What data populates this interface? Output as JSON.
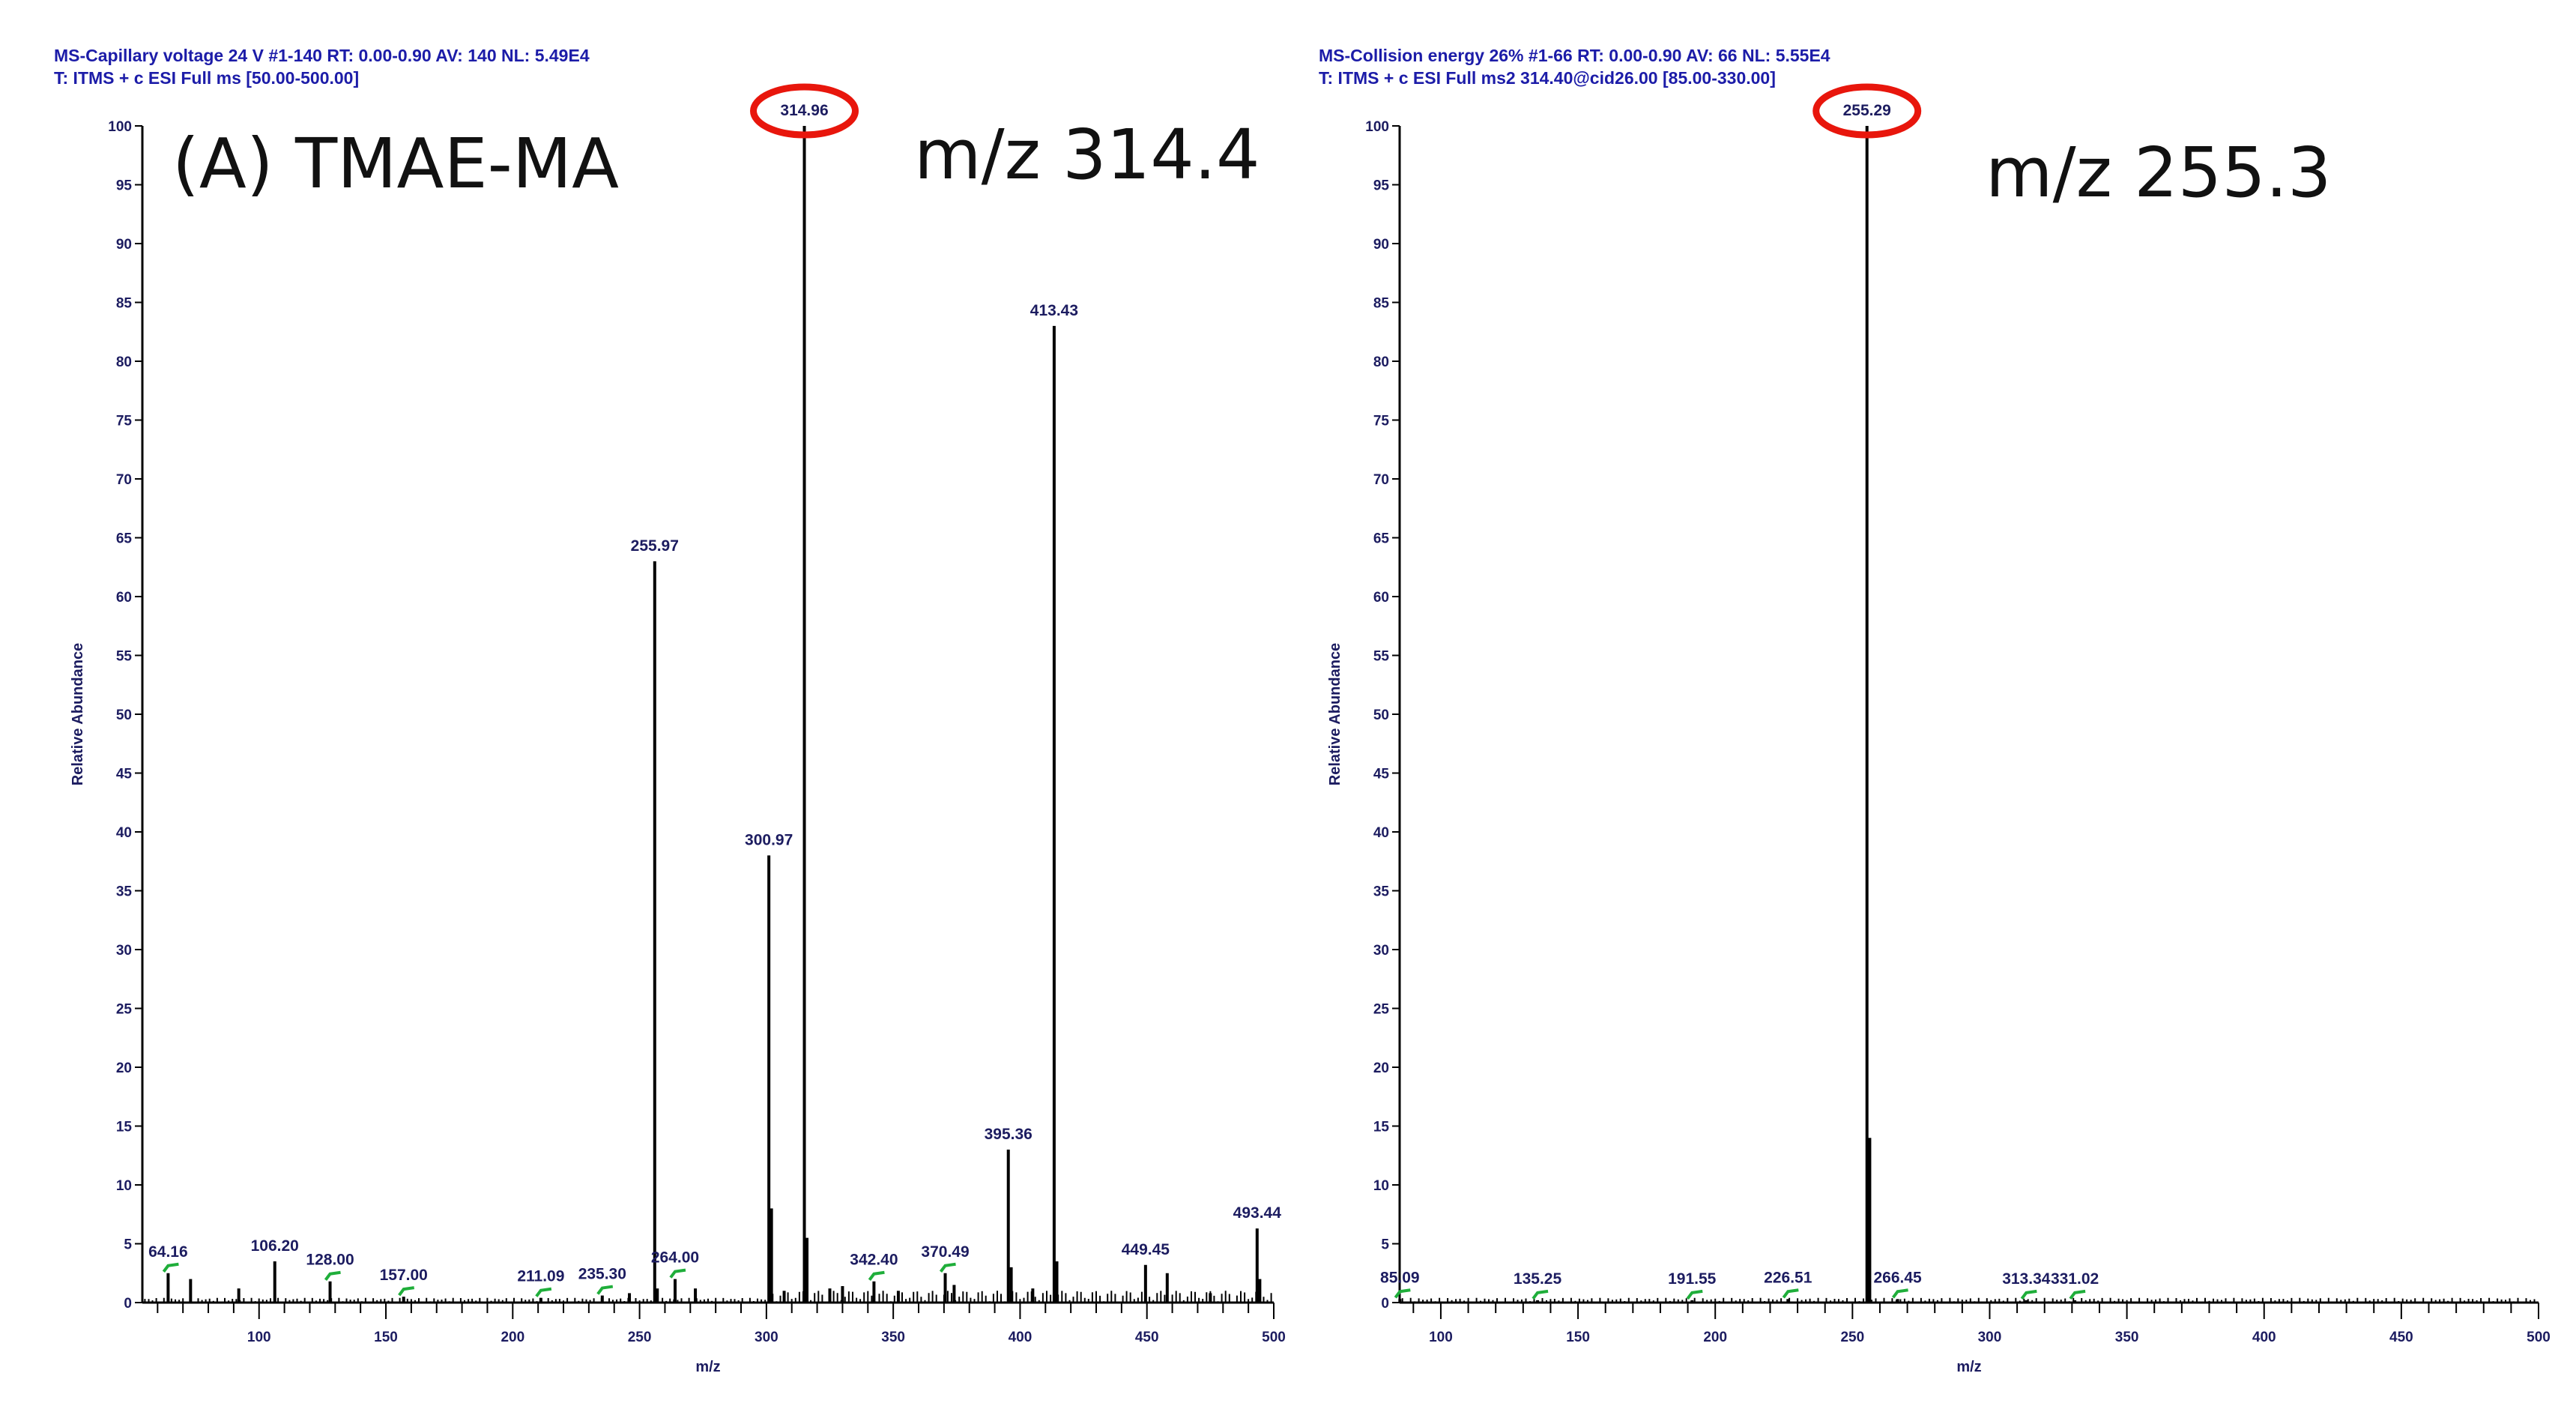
{
  "chart_data": [
    {
      "type": "bar",
      "header_line1": "MS-Capillary voltage 24 V #1-140  RT: 0.00-0.90  AV: 140  NL: 5.49E4",
      "header_line2": "T: ITMS + c ESI Full ms [50.00-500.00]",
      "annotation_title": "(A) TMAE-MA",
      "annotation_mz": "m/z 314.4",
      "highlighted_peak": "314.96",
      "xlabel": "m/z",
      "ylabel": "Relative Abundance",
      "xlim": [
        54,
        500
      ],
      "ylim": [
        0,
        100
      ],
      "xticks": [
        100,
        150,
        200,
        250,
        300,
        350,
        400,
        450,
        500
      ],
      "yticks": [
        0,
        5,
        10,
        15,
        20,
        25,
        30,
        35,
        40,
        45,
        50,
        55,
        60,
        65,
        70,
        75,
        80,
        85,
        90,
        95,
        100
      ],
      "peaks": [
        {
          "mz": 64.16,
          "intensity": 2.5,
          "label": "64.16"
        },
        {
          "mz": 73,
          "intensity": 2
        },
        {
          "mz": 92,
          "intensity": 1.2
        },
        {
          "mz": 106.2,
          "intensity": 3.5,
          "label": "106.20"
        },
        {
          "mz": 128.0,
          "intensity": 1.8,
          "label": "128.00"
        },
        {
          "mz": 157.0,
          "intensity": 0.5,
          "label": "157.00"
        },
        {
          "mz": 211.09,
          "intensity": 0.4,
          "label": "211.09"
        },
        {
          "mz": 235.3,
          "intensity": 0.6,
          "label": "235.30"
        },
        {
          "mz": 246,
          "intensity": 0.8
        },
        {
          "mz": 255.97,
          "intensity": 63,
          "label": "255.97"
        },
        {
          "mz": 257,
          "intensity": 1.2
        },
        {
          "mz": 264.0,
          "intensity": 2,
          "label": "264.00"
        },
        {
          "mz": 272,
          "intensity": 1.2
        },
        {
          "mz": 300.97,
          "intensity": 38,
          "label": "300.97"
        },
        {
          "mz": 302,
          "intensity": 8
        },
        {
          "mz": 307,
          "intensity": 1
        },
        {
          "mz": 314.96,
          "intensity": 100,
          "label": "314.96"
        },
        {
          "mz": 316,
          "intensity": 5.5
        },
        {
          "mz": 325,
          "intensity": 1.2
        },
        {
          "mz": 330,
          "intensity": 1.4
        },
        {
          "mz": 342.4,
          "intensity": 1.8,
          "label": "342.40"
        },
        {
          "mz": 352,
          "intensity": 1
        },
        {
          "mz": 370.49,
          "intensity": 2.5,
          "label": "370.49"
        },
        {
          "mz": 374,
          "intensity": 1.5
        },
        {
          "mz": 395.36,
          "intensity": 13,
          "label": "395.36"
        },
        {
          "mz": 396.5,
          "intensity": 3
        },
        {
          "mz": 405,
          "intensity": 1.2
        },
        {
          "mz": 413.43,
          "intensity": 83,
          "label": "413.43"
        },
        {
          "mz": 414.5,
          "intensity": 3.5
        },
        {
          "mz": 449.45,
          "intensity": 3.2,
          "label": "449.45"
        },
        {
          "mz": 458,
          "intensity": 2.5
        },
        {
          "mz": 475,
          "intensity": 0.8
        },
        {
          "mz": 493.44,
          "intensity": 6.3,
          "label": "493.44"
        },
        {
          "mz": 494.5,
          "intensity": 2
        }
      ]
    },
    {
      "type": "bar",
      "header_line1": "MS-Collision energy 26% #1-66  RT: 0.00-0.90  AV: 66  NL: 5.55E4",
      "header_line2": "T: ITMS + c ESI Full ms2 314.40@cid26.00 [85.00-330.00]",
      "annotation_title": "",
      "annotation_mz": "m/z 255.3",
      "highlighted_peak": "255.29",
      "xlabel": "m/z",
      "ylabel": "Relative Abundance",
      "xlim": [
        85,
        500
      ],
      "ylim": [
        0,
        100
      ],
      "xticks": [
        100,
        150,
        200,
        250,
        300,
        350,
        400,
        450,
        500
      ],
      "yticks": [
        0,
        5,
        10,
        15,
        20,
        25,
        30,
        35,
        40,
        45,
        50,
        55,
        60,
        65,
        70,
        75,
        80,
        85,
        90,
        95,
        100
      ],
      "peaks": [
        {
          "mz": 85.09,
          "intensity": 0.3,
          "label": "85.09"
        },
        {
          "mz": 135.25,
          "intensity": 0.2,
          "label": "135.25"
        },
        {
          "mz": 191.55,
          "intensity": 0.2,
          "label": "191.55"
        },
        {
          "mz": 226.51,
          "intensity": 0.3,
          "label": "226.51"
        },
        {
          "mz": 255.29,
          "intensity": 100,
          "label": "255.29"
        },
        {
          "mz": 256.3,
          "intensity": 14
        },
        {
          "mz": 266.45,
          "intensity": 0.3,
          "label": "266.45"
        },
        {
          "mz": 313.34,
          "intensity": 0.2,
          "label": "313.34"
        },
        {
          "mz": 331.02,
          "intensity": 0.2,
          "label": "331.02"
        }
      ]
    }
  ],
  "colors": {
    "header_text": "#1c1ca8",
    "highlight_ring": "#e8160c",
    "peaks": "#000000",
    "minor_marker": "#1fae3a"
  }
}
